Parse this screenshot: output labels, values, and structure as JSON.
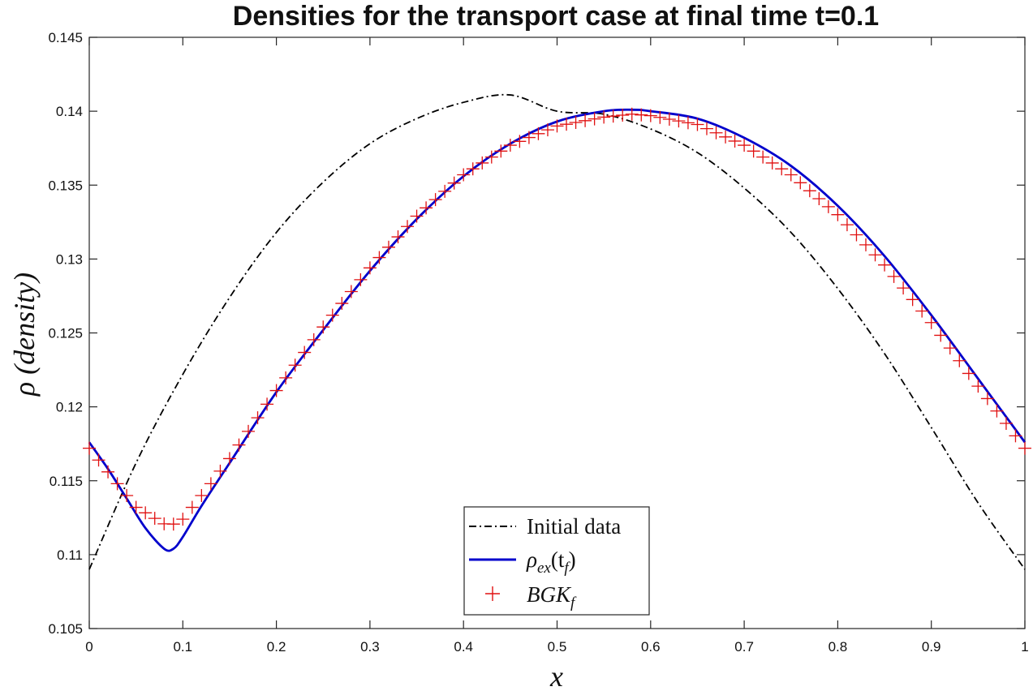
{
  "chart_data": {
    "type": "line",
    "title": "Densities for the transport case at final time t=0.1",
    "xlabel": "x",
    "ylabel": "ρ (density)",
    "xlim": [
      0,
      1
    ],
    "ylim": [
      0.105,
      0.145
    ],
    "xticks": [
      0,
      0.1,
      0.2,
      0.3,
      0.4,
      0.5,
      0.6,
      0.7,
      0.8,
      0.9,
      1
    ],
    "xtick_labels": [
      "0",
      "0.1",
      "0.2",
      "0.3",
      "0.4",
      "0.5",
      "0.6",
      "0.7",
      "0.8",
      "0.9",
      "1"
    ],
    "yticks": [
      0.105,
      0.11,
      0.115,
      0.12,
      0.125,
      0.13,
      0.135,
      0.14,
      0.145
    ],
    "ytick_labels": [
      "0.105",
      "0.11",
      "0.115",
      "0.12",
      "0.125",
      "0.13",
      "0.135",
      "0.14",
      "0.145"
    ],
    "grid": false,
    "legend_position": "bottom-center",
    "series": [
      {
        "name": "Initial data",
        "style": "dash-dot",
        "color": "#000000",
        "x": [
          0,
          0.05,
          0.1,
          0.15,
          0.2,
          0.25,
          0.3,
          0.35,
          0.4,
          0.45,
          0.5,
          0.55,
          0.6,
          0.65,
          0.7,
          0.75,
          0.8,
          0.85,
          0.9,
          0.95,
          1
        ],
        "y": [
          0.109,
          0.1162,
          0.1222,
          0.1274,
          0.1318,
          0.1352,
          0.1378,
          0.1395,
          0.1406,
          0.1411,
          0.14,
          0.1398,
          0.1388,
          0.1372,
          0.1348,
          0.1318,
          0.128,
          0.1236,
          0.1186,
          0.1135,
          0.109
        ]
      },
      {
        "name": "ρ_ex(t_f)",
        "legend_main": "ρ",
        "legend_sub": "ex",
        "legend_paren": "(t",
        "legend_sub2": "f",
        "legend_close": ")",
        "style": "solid",
        "color": "#0000cc",
        "x": [
          0,
          0.02,
          0.04,
          0.06,
          0.08,
          0.09,
          0.1,
          0.12,
          0.15,
          0.2,
          0.25,
          0.3,
          0.35,
          0.4,
          0.45,
          0.5,
          0.55,
          0.58,
          0.6,
          0.65,
          0.7,
          0.75,
          0.8,
          0.85,
          0.9,
          0.95,
          1
        ],
        "y": [
          0.1176,
          0.1158,
          0.1138,
          0.1118,
          0.1104,
          0.1104,
          0.1112,
          0.1133,
          0.1162,
          0.121,
          0.1252,
          0.1292,
          0.1327,
          0.1356,
          0.1378,
          0.1393,
          0.14,
          0.1401,
          0.14,
          0.1395,
          0.1382,
          0.1363,
          0.1336,
          0.1302,
          0.1262,
          0.1219,
          0.1176
        ]
      },
      {
        "name": "BGK_f",
        "legend_main": "BGK",
        "legend_sub": "f",
        "style": "plus-markers",
        "color": "#e01010",
        "x": [
          0,
          0.05,
          0.085,
          0.1,
          0.13,
          0.15,
          0.2,
          0.25,
          0.3,
          0.35,
          0.4,
          0.45,
          0.5,
          0.55,
          0.58,
          0.6,
          0.65,
          0.7,
          0.75,
          0.8,
          0.85,
          0.9,
          0.95,
          1
        ],
        "y": [
          0.1172,
          0.1132,
          0.1119,
          0.1124,
          0.1148,
          0.1165,
          0.1211,
          0.1254,
          0.1294,
          0.1329,
          0.1357,
          0.1377,
          0.139,
          0.1396,
          0.1398,
          0.1397,
          0.1391,
          0.1377,
          0.1357,
          0.133,
          0.1296,
          0.1257,
          0.1214,
          0.1172
        ]
      }
    ]
  }
}
